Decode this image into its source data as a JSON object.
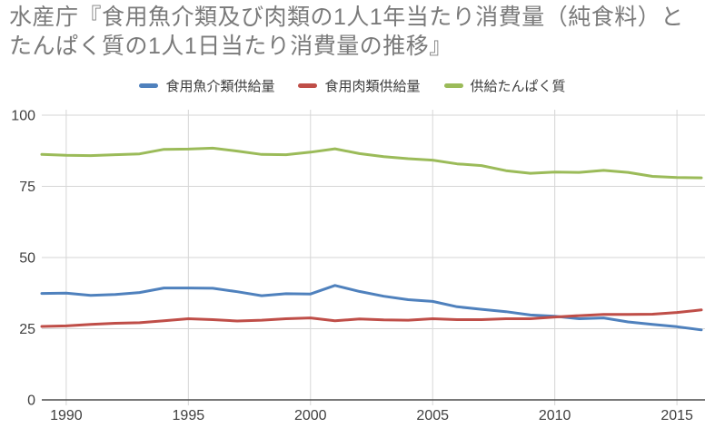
{
  "title": "水産庁『食用魚介類及び肉類の1人1年当たり消費量（純食料）とたんぱく質の1人1日当たり消費量の推移』",
  "colors": {
    "title_text": "#7a7a7a",
    "grid": "#d6d6d6",
    "axis_line": "#4d4d4d",
    "tick_label": "#404040",
    "series_fish": "#4f81bd",
    "series_meat": "#bf4e48",
    "series_protein": "#9bbb59"
  },
  "chart_data": {
    "type": "line",
    "title": "水産庁『食用魚介類及び肉類の1人1年当たり消費量（純食料）とたんぱく質の1人1日当たり消費量の推移』",
    "xlabel": "",
    "ylabel": "",
    "ylim": [
      0,
      100
    ],
    "yticks": [
      0,
      25,
      50,
      75,
      100
    ],
    "xticks": [
      1990,
      1995,
      2000,
      2005,
      2010,
      2015
    ],
    "grid": true,
    "legend_position": "top",
    "x": [
      1989,
      1990,
      1991,
      1992,
      1993,
      1994,
      1995,
      1996,
      1997,
      1998,
      1999,
      2000,
      2001,
      2002,
      2003,
      2004,
      2005,
      2006,
      2007,
      2008,
      2009,
      2010,
      2011,
      2012,
      2013,
      2014,
      2015,
      2016
    ],
    "series": [
      {
        "name": "食用魚介類供給量",
        "color": "#4f81bd",
        "values": [
          37.4,
          37.5,
          36.7,
          37.0,
          37.7,
          39.3,
          39.3,
          39.2,
          38.0,
          36.6,
          37.3,
          37.2,
          40.2,
          38.1,
          36.4,
          35.2,
          34.6,
          32.7,
          31.8,
          31.0,
          29.8,
          29.4,
          28.5,
          28.8,
          27.4,
          26.5,
          25.7,
          24.6
        ]
      },
      {
        "name": "食用肉類供給量",
        "color": "#bf4e48",
        "values": [
          25.8,
          26.0,
          26.5,
          26.9,
          27.1,
          27.8,
          28.5,
          28.2,
          27.7,
          28.0,
          28.5,
          28.8,
          27.8,
          28.4,
          28.1,
          28.0,
          28.5,
          28.2,
          28.2,
          28.5,
          28.5,
          29.1,
          29.6,
          30.0,
          30.0,
          30.1,
          30.7,
          31.6
        ]
      },
      {
        "name": "供給たんぱく質",
        "color": "#9bbb59",
        "values": [
          86.2,
          85.9,
          85.8,
          86.1,
          86.4,
          88.0,
          88.1,
          88.4,
          87.4,
          86.2,
          86.1,
          87.0,
          88.2,
          86.5,
          85.4,
          84.7,
          84.2,
          82.9,
          82.3,
          80.5,
          79.6,
          80.0,
          79.9,
          80.6,
          79.9,
          78.5,
          78.1,
          78.0
        ]
      }
    ]
  }
}
